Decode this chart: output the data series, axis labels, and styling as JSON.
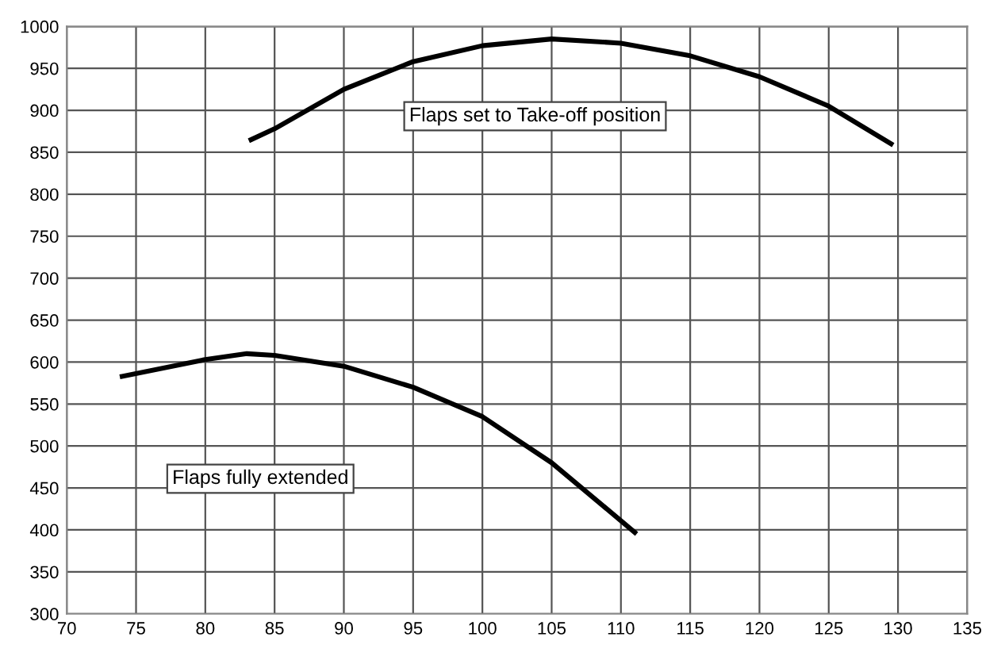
{
  "chart_data": {
    "type": "line",
    "xlim": [
      70,
      135
    ],
    "xticks": [
      70,
      75,
      80,
      85,
      90,
      95,
      100,
      105,
      110,
      115,
      120,
      125,
      130,
      135
    ],
    "ylim": [
      300,
      1000
    ],
    "yticks": [
      300,
      350,
      400,
      450,
      500,
      550,
      600,
      650,
      700,
      750,
      800,
      850,
      900,
      950,
      1000
    ],
    "grid": true,
    "marker": "none",
    "line_style": "solid",
    "series": [
      {
        "color": "#000000",
        "x": [
          83.3,
          85,
          90,
          95,
          100,
          105,
          110,
          115,
          120,
          125,
          129.5
        ],
        "values": [
          865,
          878,
          925,
          958,
          977,
          985,
          980,
          965,
          940,
          905,
          860
        ]
      },
      {
        "color": "#000000",
        "x": [
          74,
          80,
          83,
          85,
          90,
          95,
          100,
          105,
          111
        ],
        "values": [
          583,
          603,
          610,
          608,
          595,
          570,
          535,
          480,
          397
        ]
      }
    ],
    "annotations": [
      "Flaps set to Take-off position",
      "Flaps fully extended"
    ]
  }
}
